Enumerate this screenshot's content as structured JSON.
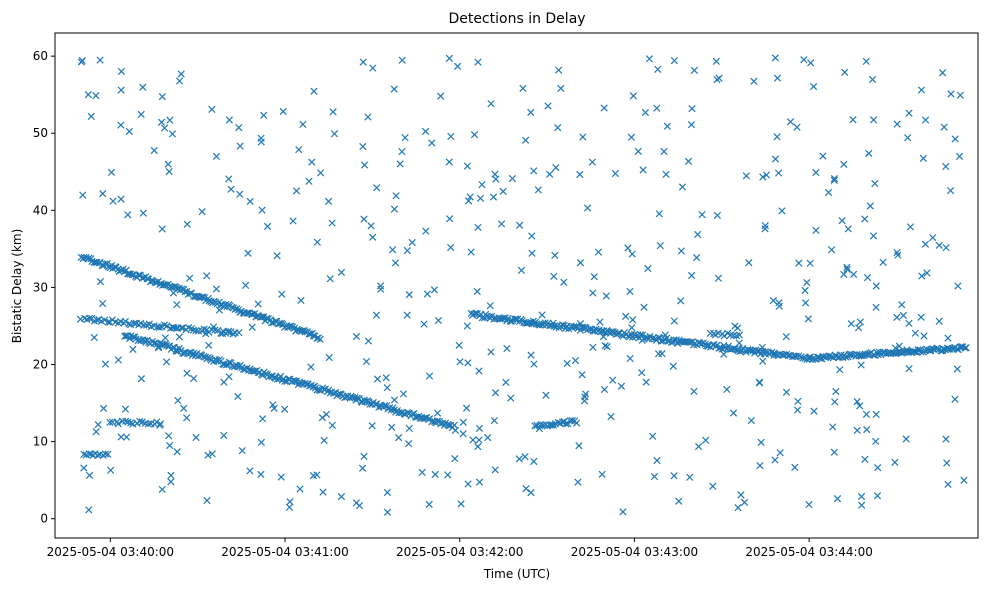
{
  "chart_data": {
    "type": "scatter",
    "title": "Detections in Delay",
    "xlabel": "Time (UTC)",
    "ylabel": "Bistatic Delay (km)",
    "xlim_seconds": [
      -19,
      298
    ],
    "ylim": [
      -2.5,
      63
    ],
    "x_ticks": [
      {
        "t": 0,
        "label": "2025-05-04 03:40:00"
      },
      {
        "t": 60,
        "label": "2025-05-04 03:41:00"
      },
      {
        "t": 120,
        "label": "2025-05-04 03:42:00"
      },
      {
        "t": 180,
        "label": "2025-05-04 03:43:00"
      },
      {
        "t": 240,
        "label": "2025-05-04 03:44:00"
      }
    ],
    "y_ticks": [
      0,
      10,
      20,
      30,
      40,
      50,
      60
    ],
    "marker": "x",
    "color": "#1f77b4",
    "series": [
      {
        "name": "track-upper-1",
        "start": [
          -10,
          34
        ],
        "end": [
          72,
          23.5
        ],
        "step_s": 0.55,
        "jitter_km": 0.25
      },
      {
        "name": "track-lower-1",
        "start": [
          -10,
          26
        ],
        "end": [
          44,
          24
        ],
        "step_s": 0.9,
        "jitter_km": 0.2
      },
      {
        "name": "track-a",
        "start": [
          5,
          23.8
        ],
        "end": [
          118,
          12
        ],
        "step_s": 0.55,
        "jitter_km": 0.25
      },
      {
        "name": "track-b",
        "start": [
          124,
          26.5
        ],
        "end": [
          225,
          21.5
        ],
        "step_s": 0.55,
        "jitter_km": 0.25
      },
      {
        "name": "track-c",
        "start": [
          225,
          21.5
        ],
        "end": [
          240,
          20.8
        ],
        "step_s": 0.7,
        "jitter_km": 0.2
      },
      {
        "name": "track-d",
        "start": [
          240,
          20.8
        ],
        "end": [
          294,
          22.2
        ],
        "step_s": 0.55,
        "jitter_km": 0.2
      },
      {
        "name": "track-e",
        "start": [
          146,
          12
        ],
        "end": [
          160,
          12.6
        ],
        "step_s": 0.7,
        "jitter_km": 0.2
      },
      {
        "name": "track-f",
        "start": [
          -9,
          8.3
        ],
        "end": [
          -1,
          8.3
        ],
        "step_s": 0.8,
        "jitter_km": 0.15
      },
      {
        "name": "track-g",
        "start": [
          0,
          12.5
        ],
        "end": [
          17,
          12.4
        ],
        "step_s": 1.0,
        "jitter_km": 0.2
      },
      {
        "name": "track-h",
        "start": [
          206,
          24
        ],
        "end": [
          216,
          23.8
        ],
        "step_s": 1.0,
        "jitter_km": 0.2
      }
    ],
    "clutter": {
      "count": 520,
      "t_range": [
        -10,
        294
      ],
      "delay_range": [
        0.8,
        59.8
      ],
      "seed": 1337
    }
  }
}
